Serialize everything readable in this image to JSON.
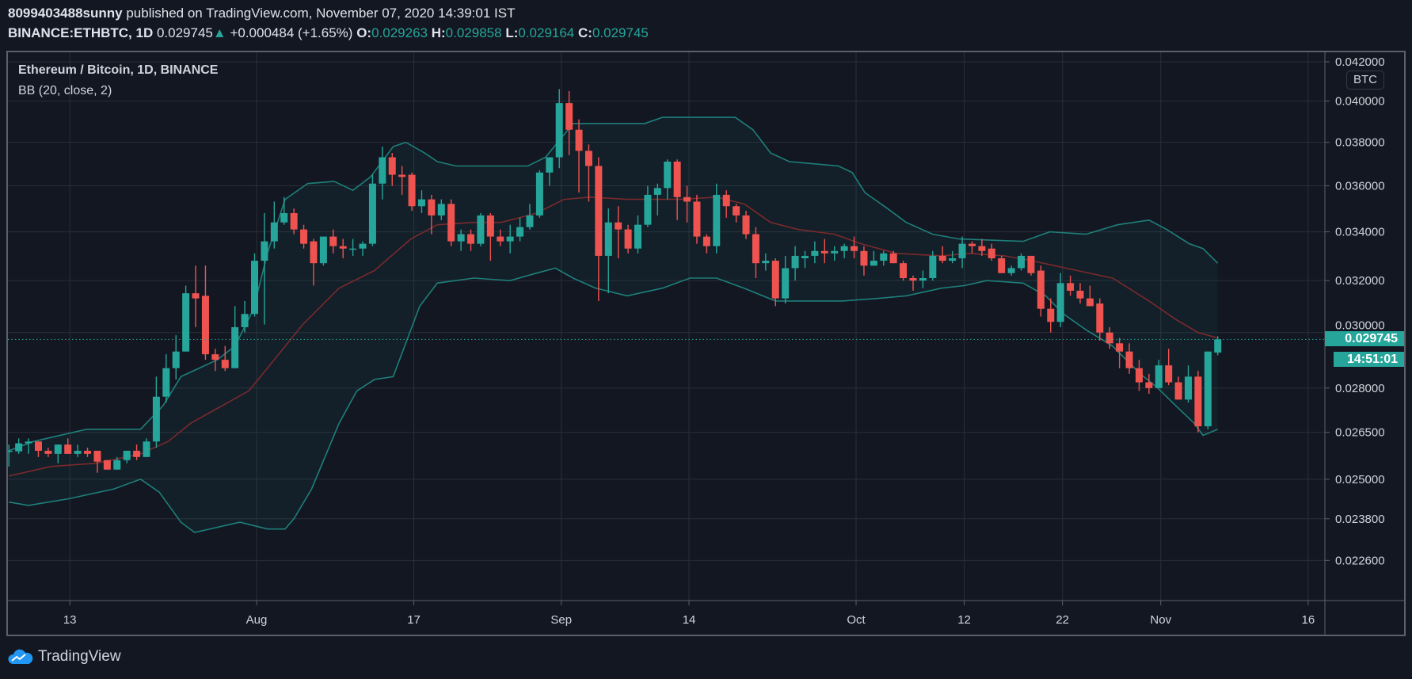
{
  "header": {
    "author": "8099403488sunny",
    "published": "published on TradingView.com, November 07, 2020 14:39:01 IST",
    "symbol": "BINANCE:ETHBTC, 1D",
    "last": "0.029745",
    "arrow": "▲",
    "change": "+0.000484 (+1.65%)",
    "o_label": "O:",
    "o": "0.029263",
    "h_label": "H:",
    "h": "0.029858",
    "l_label": "L:",
    "l": "0.029164",
    "c_label": "C:",
    "c": "0.029745"
  },
  "legend": {
    "title": "Ethereum / Bitcoin, 1D, BINANCE",
    "indicator": "BB (20, close, 2)"
  },
  "currency_badge": "BTC",
  "price_label": "0.029745",
  "countdown": "14:51:01",
  "logo_text": "TradingView",
  "colors": {
    "up": "#26a69a",
    "down": "#ef5350",
    "band": "#1e7f7a",
    "basis": "#7a2a2c",
    "bg": "#131722",
    "grid": "#2a2e39"
  },
  "chart_data": {
    "type": "candlestick",
    "title": "Ethereum / Bitcoin, 1D, BINANCE",
    "y_scale": "log",
    "ylim": [
      0.0215,
      0.0425
    ],
    "last_close": 0.029745,
    "y_ticks": [
      {
        "value": 0.042,
        "label": "0.042000"
      },
      {
        "value": 0.04,
        "label": "0.040000"
      },
      {
        "value": 0.038,
        "label": "0.038000"
      },
      {
        "value": 0.036,
        "label": "0.036000"
      },
      {
        "value": 0.034,
        "label": "0.034000"
      },
      {
        "value": 0.032,
        "label": "0.032000"
      },
      {
        "value": 0.03,
        "label": "0.030000"
      },
      {
        "value": 0.028,
        "label": "0.028000"
      },
      {
        "value": 0.0265,
        "label": "0.026500"
      },
      {
        "value": 0.025,
        "label": "0.025000"
      },
      {
        "value": 0.0238,
        "label": "0.023800"
      },
      {
        "value": 0.0226,
        "label": "0.022600"
      }
    ],
    "x_ticks": [
      {
        "index": 6.2,
        "label": "13"
      },
      {
        "index": 25.2,
        "label": "Aug"
      },
      {
        "index": 41.2,
        "label": "17"
      },
      {
        "index": 56.2,
        "label": "Sep"
      },
      {
        "index": 69.2,
        "label": "14"
      },
      {
        "index": 86.2,
        "label": "Oct"
      },
      {
        "index": 97.2,
        "label": "12"
      },
      {
        "index": 107.2,
        "label": "22"
      },
      {
        "index": 117.2,
        "label": "Nov"
      },
      {
        "index": 132.2,
        "label": "16"
      }
    ],
    "x_range": [
      -0.1,
      133.9
    ],
    "ohlc": [
      [
        0.0259,
        0.0261,
        0.0254,
        0.0259
      ],
      [
        0.02588,
        0.0263,
        0.0258,
        0.02614
      ],
      [
        0.02614,
        0.0263,
        0.0258,
        0.0262
      ],
      [
        0.0262,
        0.0262,
        0.0257,
        0.0259
      ],
      [
        0.0259,
        0.026,
        0.0257,
        0.0258
      ],
      [
        0.0258,
        0.0261,
        0.0255,
        0.0261
      ],
      [
        0.0261,
        0.0263,
        0.0258,
        0.0258
      ],
      [
        0.0258,
        0.0261,
        0.0257,
        0.0259
      ],
      [
        0.0259,
        0.026,
        0.0257,
        0.0258
      ],
      [
        0.0259,
        0.0259,
        0.0252,
        0.02555
      ],
      [
        0.0256,
        0.0256,
        0.0253,
        0.0253
      ],
      [
        0.0253,
        0.0257,
        0.0253,
        0.0256
      ],
      [
        0.0256,
        0.0259,
        0.0255,
        0.0259
      ],
      [
        0.0259,
        0.0261,
        0.0256,
        0.0257
      ],
      [
        0.0257,
        0.0263,
        0.0257,
        0.0262
      ],
      [
        0.0262,
        0.0284,
        0.026,
        0.0277
      ],
      [
        0.0277,
        0.0292,
        0.0275,
        0.0287
      ],
      [
        0.0287,
        0.0299,
        0.0283,
        0.0293
      ],
      [
        0.0293,
        0.0318,
        0.0293,
        0.0315
      ],
      [
        0.0315,
        0.0326,
        0.0302,
        0.0313
      ],
      [
        0.0314,
        0.0326,
        0.029,
        0.0292
      ],
      [
        0.0292,
        0.0294,
        0.0286,
        0.029
      ],
      [
        0.029,
        0.0295,
        0.0286,
        0.0287
      ],
      [
        0.0287,
        0.031,
        0.0287,
        0.0302
      ],
      [
        0.0302,
        0.0312,
        0.03,
        0.0307
      ],
      [
        0.0307,
        0.0331,
        0.0306,
        0.0328
      ],
      [
        0.0328,
        0.0348,
        0.0303,
        0.0336
      ],
      [
        0.0336,
        0.0353,
        0.0333,
        0.0344
      ],
      [
        0.0344,
        0.0355,
        0.0343,
        0.0348
      ],
      [
        0.0348,
        0.035,
        0.0339,
        0.0341
      ],
      [
        0.0341,
        0.0343,
        0.0333,
        0.0335
      ],
      [
        0.0336,
        0.0337,
        0.0318,
        0.0327
      ],
      [
        0.0327,
        0.0338,
        0.0326,
        0.0338
      ],
      [
        0.0338,
        0.0341,
        0.0331,
        0.0334
      ],
      [
        0.0334,
        0.0337,
        0.0329,
        0.0333
      ],
      [
        0.0333,
        0.0337,
        0.033,
        0.0333
      ],
      [
        0.0333,
        0.0336,
        0.033,
        0.0335
      ],
      [
        0.0335,
        0.0365,
        0.0334,
        0.0361
      ],
      [
        0.0361,
        0.0378,
        0.0354,
        0.0373
      ],
      [
        0.0373,
        0.0375,
        0.036,
        0.0365
      ],
      [
        0.0365,
        0.0369,
        0.0356,
        0.0364
      ],
      [
        0.0365,
        0.0366,
        0.0349,
        0.0351
      ],
      [
        0.0351,
        0.0358,
        0.0348,
        0.0354
      ],
      [
        0.0354,
        0.0356,
        0.0339,
        0.0347
      ],
      [
        0.0347,
        0.0354,
        0.0345,
        0.0352
      ],
      [
        0.0352,
        0.0354,
        0.0334,
        0.0336
      ],
      [
        0.0336,
        0.0341,
        0.0332,
        0.0339
      ],
      [
        0.0339,
        0.0341,
        0.0332,
        0.0335
      ],
      [
        0.0335,
        0.0348,
        0.0334,
        0.0347
      ],
      [
        0.0347,
        0.0348,
        0.0328,
        0.0338
      ],
      [
        0.0338,
        0.0341,
        0.0334,
        0.0336
      ],
      [
        0.0336,
        0.0343,
        0.0331,
        0.0338
      ],
      [
        0.0338,
        0.0346,
        0.0336,
        0.0342
      ],
      [
        0.0342,
        0.0352,
        0.0341,
        0.0347
      ],
      [
        0.0347,
        0.0367,
        0.0346,
        0.0366
      ],
      [
        0.0366,
        0.0373,
        0.036,
        0.0373
      ],
      [
        0.0373,
        0.0406,
        0.0368,
        0.0399
      ],
      [
        0.0399,
        0.0405,
        0.0374,
        0.0386
      ],
      [
        0.0386,
        0.0391,
        0.0357,
        0.0376
      ],
      [
        0.0376,
        0.0379,
        0.0353,
        0.0369
      ],
      [
        0.0369,
        0.0373,
        0.0312,
        0.033
      ],
      [
        0.033,
        0.035,
        0.0315,
        0.0344
      ],
      [
        0.0344,
        0.0351,
        0.0329,
        0.0341
      ],
      [
        0.0341,
        0.0343,
        0.0331,
        0.0333
      ],
      [
        0.0333,
        0.0347,
        0.0331,
        0.0343
      ],
      [
        0.0343,
        0.036,
        0.0342,
        0.0356
      ],
      [
        0.0356,
        0.0361,
        0.0347,
        0.0359
      ],
      [
        0.0359,
        0.0372,
        0.0354,
        0.0371
      ],
      [
        0.0371,
        0.0372,
        0.0345,
        0.0355
      ],
      [
        0.0355,
        0.036,
        0.0344,
        0.0353
      ],
      [
        0.0353,
        0.0356,
        0.0335,
        0.0338
      ],
      [
        0.0338,
        0.0339,
        0.0331,
        0.0334
      ],
      [
        0.0334,
        0.0361,
        0.0331,
        0.0356
      ],
      [
        0.0356,
        0.0358,
        0.0346,
        0.0351
      ],
      [
        0.0351,
        0.0352,
        0.0344,
        0.0347
      ],
      [
        0.0347,
        0.0349,
        0.0337,
        0.0339
      ],
      [
        0.0339,
        0.0342,
        0.0321,
        0.0327
      ],
      [
        0.0327,
        0.0331,
        0.0324,
        0.0328
      ],
      [
        0.0328,
        0.0329,
        0.031,
        0.0313
      ],
      [
        0.0313,
        0.033,
        0.0311,
        0.0325
      ],
      [
        0.0325,
        0.0334,
        0.032,
        0.033
      ],
      [
        0.0329,
        0.0332,
        0.0325,
        0.033
      ],
      [
        0.033,
        0.0336,
        0.0327,
        0.0332
      ],
      [
        0.0332,
        0.0337,
        0.0327,
        0.0331
      ],
      [
        0.0331,
        0.0334,
        0.0328,
        0.0332
      ],
      [
        0.0332,
        0.0335,
        0.0329,
        0.0334
      ],
      [
        0.0334,
        0.0338,
        0.0329,
        0.0332
      ],
      [
        0.0332,
        0.0334,
        0.0322,
        0.0326
      ],
      [
        0.0326,
        0.0332,
        0.0326,
        0.0328
      ],
      [
        0.0328,
        0.0332,
        0.0326,
        0.0331
      ],
      [
        0.0331,
        0.0332,
        0.0327,
        0.0327
      ],
      [
        0.0327,
        0.0328,
        0.032,
        0.0321
      ],
      [
        0.0321,
        0.0322,
        0.0316,
        0.032
      ],
      [
        0.032,
        0.0324,
        0.0317,
        0.0321
      ],
      [
        0.0321,
        0.0332,
        0.032,
        0.033
      ],
      [
        0.033,
        0.0334,
        0.0327,
        0.0328
      ],
      [
        0.0328,
        0.0332,
        0.0327,
        0.0329
      ],
      [
        0.0329,
        0.0338,
        0.0325,
        0.0335
      ],
      [
        0.0335,
        0.0336,
        0.0331,
        0.0334
      ],
      [
        0.0334,
        0.0337,
        0.033,
        0.0332
      ],
      [
        0.0333,
        0.0335,
        0.0328,
        0.0329
      ],
      [
        0.0329,
        0.033,
        0.0323,
        0.0323
      ],
      [
        0.0323,
        0.0326,
        0.0322,
        0.0325
      ],
      [
        0.0325,
        0.0331,
        0.0324,
        0.033
      ],
      [
        0.033,
        0.033,
        0.0322,
        0.0323
      ],
      [
        0.0324,
        0.0326,
        0.0306,
        0.0309
      ],
      [
        0.0309,
        0.0313,
        0.03,
        0.0304
      ],
      [
        0.0304,
        0.0323,
        0.0302,
        0.0319
      ],
      [
        0.0319,
        0.0322,
        0.0314,
        0.0316
      ],
      [
        0.0316,
        0.0319,
        0.0311,
        0.0313
      ],
      [
        0.0313,
        0.0318,
        0.031,
        0.031
      ],
      [
        0.0311,
        0.0313,
        0.0297,
        0.03
      ],
      [
        0.03,
        0.0302,
        0.0294,
        0.0296
      ],
      [
        0.0296,
        0.0298,
        0.0287,
        0.0293
      ],
      [
        0.0293,
        0.0296,
        0.0285,
        0.0287
      ],
      [
        0.0287,
        0.029,
        0.0279,
        0.0282
      ],
      [
        0.0282,
        0.0285,
        0.0278,
        0.028
      ],
      [
        0.028,
        0.029,
        0.028,
        0.0288
      ],
      [
        0.0288,
        0.0294,
        0.0281,
        0.0282
      ],
      [
        0.0282,
        0.0284,
        0.0276,
        0.0276
      ],
      [
        0.0276,
        0.0288,
        0.0275,
        0.0284
      ],
      [
        0.0284,
        0.0286,
        0.0265,
        0.0267
      ],
      [
        0.0267,
        0.0293,
        0.0266,
        0.0293
      ],
      [
        0.029263,
        0.029858,
        0.029164,
        0.029745
      ]
    ],
    "bb_upper": [
      [
        0,
        0.0259
      ],
      [
        2.5,
        0.0262
      ],
      [
        7.9,
        0.0266
      ],
      [
        13.4,
        0.0266
      ],
      [
        15.7,
        0.0274
      ],
      [
        17.5,
        0.0284
      ],
      [
        21.2,
        0.029
      ],
      [
        23,
        0.0295
      ],
      [
        24.9,
        0.0309
      ],
      [
        26.3,
        0.0331
      ],
      [
        28.1,
        0.0354
      ],
      [
        30.4,
        0.0361
      ],
      [
        33.1,
        0.0362
      ],
      [
        35,
        0.0358
      ],
      [
        36.8,
        0.0364
      ],
      [
        39.1,
        0.0378
      ],
      [
        40.4,
        0.038
      ],
      [
        42.3,
        0.0375
      ],
      [
        43.6,
        0.0371
      ],
      [
        45.5,
        0.0369
      ],
      [
        52.8,
        0.0369
      ],
      [
        54.6,
        0.0373
      ],
      [
        57.4,
        0.0389
      ],
      [
        64.7,
        0.0389
      ],
      [
        66.5,
        0.0392
      ],
      [
        73.9,
        0.0392
      ],
      [
        75.7,
        0.0386
      ],
      [
        77.5,
        0.0375
      ],
      [
        79.4,
        0.0371
      ],
      [
        84.4,
        0.0369
      ],
      [
        85.8,
        0.0366
      ],
      [
        87.1,
        0.0357
      ],
      [
        89.4,
        0.035
      ],
      [
        91.3,
        0.0344
      ],
      [
        94,
        0.0339
      ],
      [
        96.7,
        0.0337
      ],
      [
        103.2,
        0.0336
      ],
      [
        105.9,
        0.034
      ],
      [
        109.6,
        0.0339
      ],
      [
        112.8,
        0.0343
      ],
      [
        116,
        0.0345
      ],
      [
        117.8,
        0.0341
      ],
      [
        120.1,
        0.0335
      ],
      [
        121.5,
        0.0333
      ],
      [
        123,
        0.0327
      ]
    ],
    "bb_basis": [
      [
        0,
        0.0251
      ],
      [
        4.3,
        0.0254
      ],
      [
        8.9,
        0.0255
      ],
      [
        13.4,
        0.0258
      ],
      [
        16.2,
        0.0262
      ],
      [
        18.5,
        0.0268
      ],
      [
        21.2,
        0.0273
      ],
      [
        24.4,
        0.0279
      ],
      [
        26.3,
        0.0287
      ],
      [
        29.9,
        0.0303
      ],
      [
        33.6,
        0.0317
      ],
      [
        37.2,
        0.0324
      ],
      [
        40.9,
        0.0337
      ],
      [
        43.6,
        0.0343
      ],
      [
        47.3,
        0.0344
      ],
      [
        50.1,
        0.0344
      ],
      [
        53.7,
        0.0348
      ],
      [
        56.5,
        0.0354
      ],
      [
        59.2,
        0.0355
      ],
      [
        62.9,
        0.0354
      ],
      [
        68.4,
        0.0354
      ],
      [
        72,
        0.0355
      ],
      [
        74.8,
        0.0352
      ],
      [
        77.5,
        0.0344
      ],
      [
        80.3,
        0.0341
      ],
      [
        84,
        0.0339
      ],
      [
        86.7,
        0.0335
      ],
      [
        90.3,
        0.0331
      ],
      [
        94.9,
        0.033
      ],
      [
        97.7,
        0.0331
      ],
      [
        101.3,
        0.033
      ],
      [
        104.1,
        0.0328
      ],
      [
        106.4,
        0.0326
      ],
      [
        108.7,
        0.0324
      ],
      [
        112.3,
        0.0321
      ],
      [
        116,
        0.0312
      ],
      [
        118.7,
        0.0305
      ],
      [
        121,
        0.03
      ],
      [
        123,
        0.0298
      ]
    ],
    "bb_lower": [
      [
        0,
        0.0243
      ],
      [
        2,
        0.0242
      ],
      [
        6.1,
        0.0244
      ],
      [
        10.7,
        0.0247
      ],
      [
        13.4,
        0.025
      ],
      [
        15.3,
        0.0246
      ],
      [
        17.5,
        0.0237
      ],
      [
        18.9,
        0.0234
      ],
      [
        23.5,
        0.0237
      ],
      [
        26.3,
        0.0235
      ],
      [
        28.1,
        0.0235
      ],
      [
        29,
        0.0238
      ],
      [
        30.8,
        0.0247
      ],
      [
        33.6,
        0.0268
      ],
      [
        35.4,
        0.0279
      ],
      [
        37.2,
        0.0283
      ],
      [
        39.1,
        0.0284
      ],
      [
        41.8,
        0.031
      ],
      [
        43.6,
        0.0319
      ],
      [
        47.3,
        0.0321
      ],
      [
        51,
        0.032
      ],
      [
        53.7,
        0.0323
      ],
      [
        55.6,
        0.0325
      ],
      [
        57.4,
        0.0321
      ],
      [
        59.7,
        0.0317
      ],
      [
        62.9,
        0.0314
      ],
      [
        66.5,
        0.0317
      ],
      [
        69.3,
        0.0321
      ],
      [
        72,
        0.0321
      ],
      [
        74.8,
        0.0317
      ],
      [
        78,
        0.0312
      ],
      [
        81.2,
        0.0312
      ],
      [
        84.8,
        0.0312
      ],
      [
        88.5,
        0.0313
      ],
      [
        91.3,
        0.0314
      ],
      [
        94.9,
        0.0317
      ],
      [
        97.2,
        0.0318
      ],
      [
        99.5,
        0.032
      ],
      [
        103.2,
        0.0319
      ],
      [
        105.5,
        0.0314
      ],
      [
        107.3,
        0.0307
      ],
      [
        109.6,
        0.0301
      ],
      [
        112.3,
        0.0295
      ],
      [
        115.1,
        0.0285
      ],
      [
        116.9,
        0.028
      ],
      [
        118.7,
        0.0274
      ],
      [
        120.6,
        0.0268
      ],
      [
        121.5,
        0.0264
      ],
      [
        123,
        0.0266
      ]
    ]
  }
}
